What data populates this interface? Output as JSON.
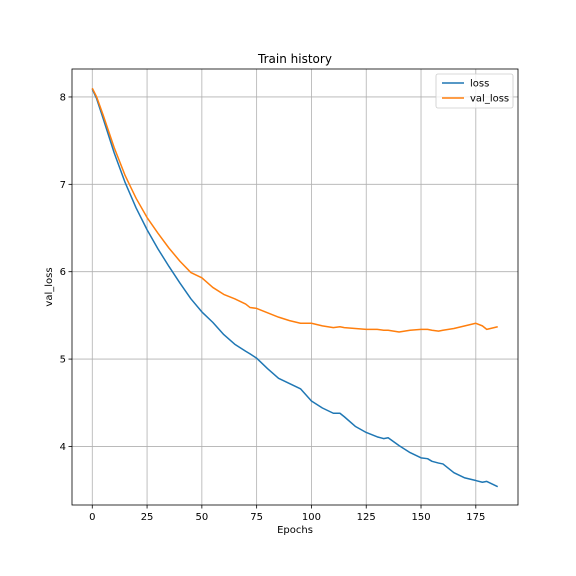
{
  "chart_data": {
    "type": "line",
    "title": "Train history",
    "xlabel": "Epochs",
    "ylabel": "val_loss",
    "xlim": [
      -9.25,
      194.25
    ],
    "ylim": [
      3.33,
      8.32
    ],
    "xticks": [
      0,
      25,
      50,
      75,
      100,
      125,
      150,
      175
    ],
    "yticks": [
      4,
      5,
      6,
      7,
      8
    ],
    "grid": true,
    "legend_position": "top-right",
    "x": [
      0,
      2,
      5,
      10,
      15,
      20,
      25,
      30,
      35,
      40,
      45,
      50,
      55,
      60,
      65,
      70,
      72,
      75,
      80,
      85,
      90,
      95,
      100,
      105,
      110,
      113,
      115,
      120,
      125,
      130,
      133,
      135,
      140,
      145,
      150,
      153,
      155,
      158,
      160,
      165,
      170,
      175,
      178,
      180,
      185
    ],
    "series": [
      {
        "name": "loss",
        "color": "#1f77b4",
        "values": [
          8.09,
          7.98,
          7.75,
          7.36,
          7.02,
          6.73,
          6.48,
          6.26,
          6.06,
          5.87,
          5.69,
          5.54,
          5.42,
          5.28,
          5.17,
          5.09,
          5.06,
          5.01,
          4.89,
          4.78,
          4.72,
          4.66,
          4.52,
          4.44,
          4.38,
          4.38,
          4.34,
          4.23,
          4.16,
          4.11,
          4.09,
          4.1,
          4.01,
          3.93,
          3.87,
          3.86,
          3.83,
          3.81,
          3.8,
          3.7,
          3.64,
          3.61,
          3.59,
          3.6,
          3.54
        ]
      },
      {
        "name": "val_loss",
        "color": "#ff7f0e",
        "values": [
          8.1,
          8.0,
          7.79,
          7.42,
          7.1,
          6.84,
          6.62,
          6.44,
          6.27,
          6.12,
          5.99,
          5.93,
          5.82,
          5.74,
          5.69,
          5.63,
          5.59,
          5.58,
          5.53,
          5.48,
          5.44,
          5.41,
          5.41,
          5.38,
          5.36,
          5.37,
          5.36,
          5.35,
          5.34,
          5.34,
          5.33,
          5.33,
          5.31,
          5.33,
          5.34,
          5.34,
          5.33,
          5.32,
          5.33,
          5.35,
          5.38,
          5.41,
          5.38,
          5.34,
          5.37
        ]
      }
    ]
  }
}
